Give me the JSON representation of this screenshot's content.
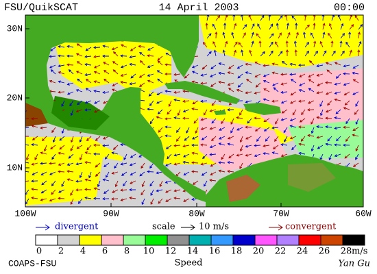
{
  "header": {
    "left": "FSU/QuikSCAT",
    "date": "14 April 2003",
    "time": "00:00"
  },
  "map": {
    "lat_labels": [
      "30N",
      "20N",
      "10N"
    ],
    "lon_labels": [
      "100W",
      "90W",
      "80W",
      "70W",
      "60W"
    ]
  },
  "legend": {
    "divergent": "divergent",
    "scale": "scale",
    "scale_value": "10 m/s",
    "convergent": "convergent"
  },
  "colorbar": {
    "labels": [
      0,
      2,
      4,
      6,
      8,
      10,
      12,
      14,
      16,
      18,
      20,
      22,
      24,
      26,
      28
    ],
    "unit": "m/s",
    "title": "Speed",
    "colors": [
      "#ffffff",
      "#d3d3d3",
      "#ffff00",
      "#ffc0cb",
      "#98fb98",
      "#00ee00",
      "#909090",
      "#00b0b0",
      "#3399ff",
      "#0000cc",
      "#ff55ff",
      "#b080ff",
      "#ff0000",
      "#cc4400",
      "#000000"
    ]
  },
  "footer": {
    "left": "COAPS-FSU",
    "right": "Yan Gu"
  }
}
